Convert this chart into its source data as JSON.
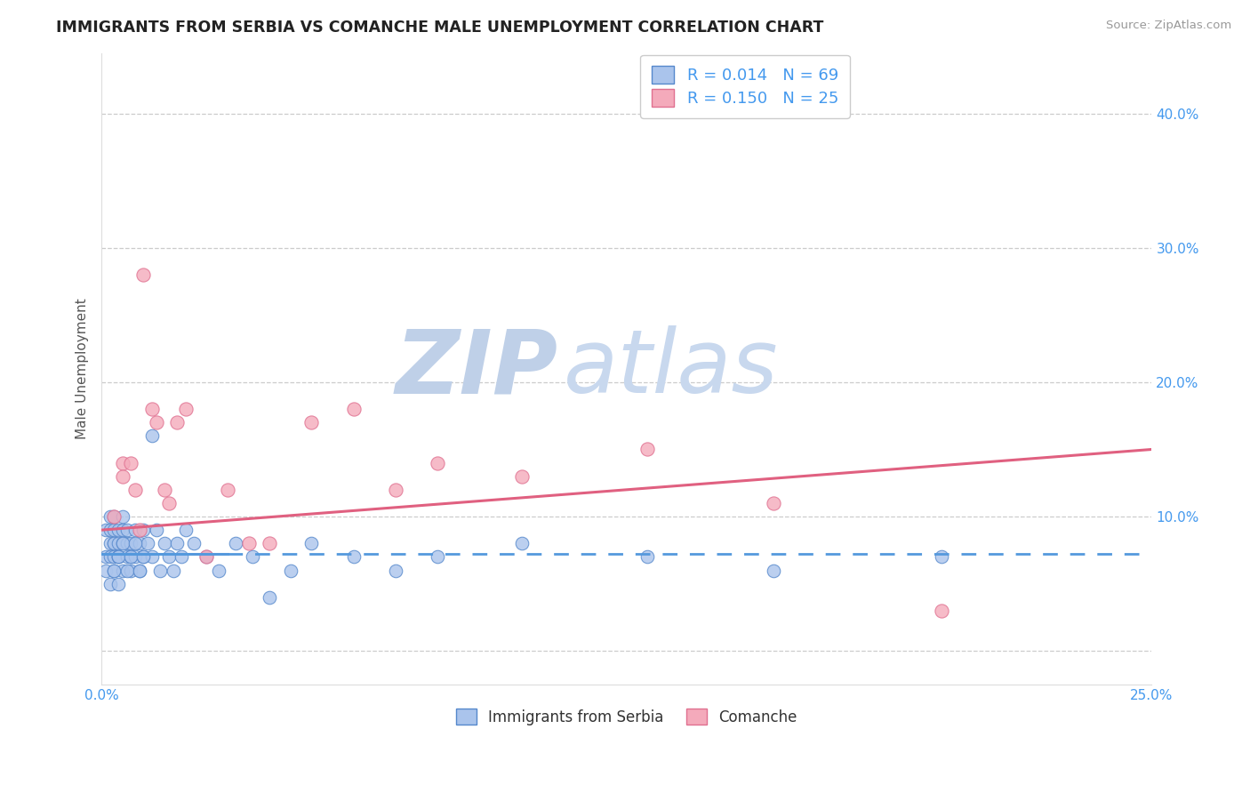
{
  "title": "IMMIGRANTS FROM SERBIA VS COMANCHE MALE UNEMPLOYMENT CORRELATION CHART",
  "source_text": "Source: ZipAtlas.com",
  "ylabel": "Male Unemployment",
  "x_min": 0.0,
  "x_max": 0.25,
  "y_min": -0.025,
  "y_max": 0.445,
  "x_ticks": [
    0.0,
    0.05,
    0.1,
    0.15,
    0.2,
    0.25
  ],
  "x_tick_labels": [
    "0.0%",
    "",
    "",
    "",
    "",
    "25.0%"
  ],
  "y_ticks": [
    0.0,
    0.1,
    0.2,
    0.3,
    0.4
  ],
  "y_tick_labels": [
    "",
    "10.0%",
    "20.0%",
    "30.0%",
    "40.0%"
  ],
  "legend_entry1": "R = 0.014   N = 69",
  "legend_entry2": "R = 0.150   N = 25",
  "series1_label": "Immigrants from Serbia",
  "series2_label": "Comanche",
  "series1_color": "#aac4ec",
  "series2_color": "#f4aabb",
  "series1_edge_color": "#5588cc",
  "series2_edge_color": "#e07090",
  "trend1_color": "#5599dd",
  "trend2_color": "#e06080",
  "watermark_zip": "ZIP",
  "watermark_atlas": "atlas",
  "watermark_color_zip": "#bfd0e8",
  "watermark_color_atlas": "#c8d8ee",
  "background_color": "#ffffff",
  "grid_color": "#cccccc",
  "title_color": "#222222",
  "axis_label_color": "#555555",
  "tick_label_color_right": "#4499ee",
  "tick_label_color_x": "#4499ee",
  "series1_x": [
    0.001,
    0.001,
    0.001,
    0.002,
    0.002,
    0.002,
    0.002,
    0.002,
    0.003,
    0.003,
    0.003,
    0.003,
    0.003,
    0.003,
    0.004,
    0.004,
    0.004,
    0.004,
    0.004,
    0.005,
    0.005,
    0.005,
    0.005,
    0.006,
    0.006,
    0.006,
    0.007,
    0.007,
    0.007,
    0.008,
    0.008,
    0.009,
    0.009,
    0.01,
    0.01,
    0.011,
    0.012,
    0.013,
    0.014,
    0.015,
    0.016,
    0.017,
    0.018,
    0.019,
    0.02,
    0.022,
    0.025,
    0.028,
    0.032,
    0.036,
    0.04,
    0.045,
    0.05,
    0.06,
    0.07,
    0.08,
    0.1,
    0.13,
    0.16,
    0.2,
    0.003,
    0.004,
    0.005,
    0.006,
    0.007,
    0.008,
    0.009,
    0.01,
    0.012
  ],
  "series1_y": [
    0.07,
    0.09,
    0.06,
    0.08,
    0.1,
    0.07,
    0.05,
    0.09,
    0.08,
    0.07,
    0.09,
    0.06,
    0.08,
    0.1,
    0.07,
    0.08,
    0.09,
    0.05,
    0.07,
    0.06,
    0.09,
    0.08,
    0.1,
    0.07,
    0.08,
    0.09,
    0.06,
    0.08,
    0.07,
    0.09,
    0.07,
    0.08,
    0.06,
    0.09,
    0.07,
    0.08,
    0.07,
    0.09,
    0.06,
    0.08,
    0.07,
    0.06,
    0.08,
    0.07,
    0.09,
    0.08,
    0.07,
    0.06,
    0.08,
    0.07,
    0.04,
    0.06,
    0.08,
    0.07,
    0.06,
    0.07,
    0.08,
    0.07,
    0.06,
    0.07,
    0.06,
    0.07,
    0.08,
    0.06,
    0.07,
    0.08,
    0.06,
    0.07,
    0.16
  ],
  "series2_x": [
    0.003,
    0.005,
    0.005,
    0.007,
    0.008,
    0.009,
    0.01,
    0.012,
    0.013,
    0.015,
    0.016,
    0.018,
    0.02,
    0.025,
    0.03,
    0.035,
    0.04,
    0.05,
    0.06,
    0.07,
    0.08,
    0.1,
    0.13,
    0.16,
    0.2
  ],
  "series2_y": [
    0.1,
    0.14,
    0.13,
    0.14,
    0.12,
    0.09,
    0.28,
    0.18,
    0.17,
    0.12,
    0.11,
    0.17,
    0.18,
    0.07,
    0.12,
    0.08,
    0.08,
    0.17,
    0.18,
    0.12,
    0.14,
    0.13,
    0.15,
    0.11,
    0.03
  ],
  "trend1_y_start": 0.072,
  "trend1_y_end": 0.072,
  "trend2_y_start": 0.09,
  "trend2_y_end": 0.15
}
